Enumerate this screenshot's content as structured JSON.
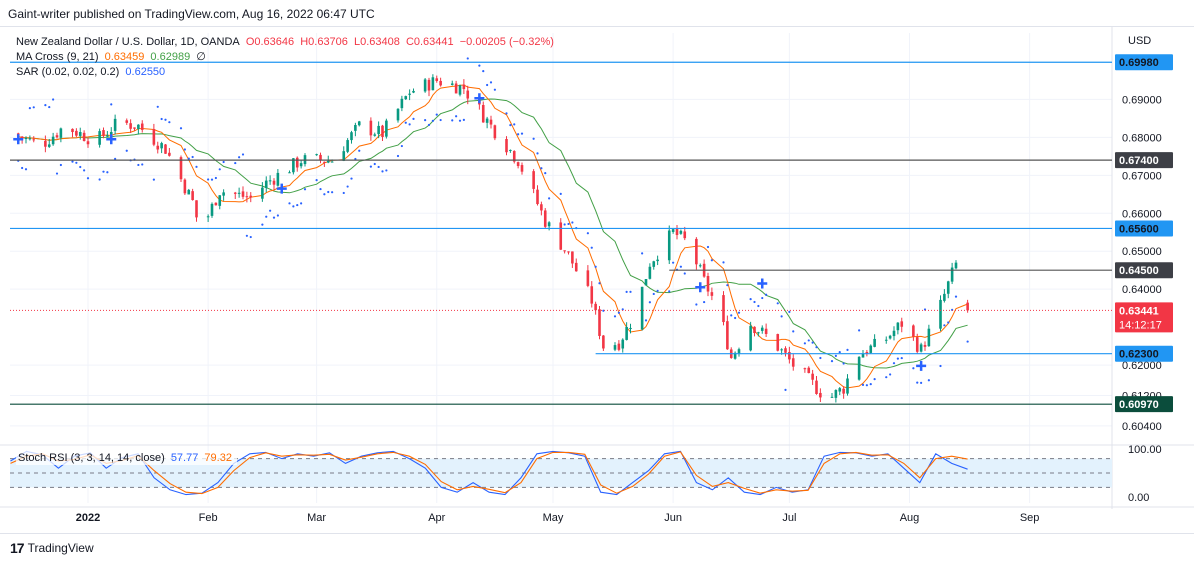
{
  "publisher": "Gaint-writer published on TradingView.com, Aug 16, 2022 06:47 UTC",
  "legend": {
    "symbol": "New Zealand Dollar / U.S. Dollar, 1D, OANDA",
    "open": "O0.63646",
    "high": "H0.63706",
    "low": "L0.63408",
    "close": "C0.63441",
    "change": "−0.00205 (−0.32%)",
    "ma_label": "MA Cross (9, 21)",
    "ma_fast": "0.63459",
    "ma_slow": "0.62989",
    "ma_extra": "∅",
    "sar_label": "SAR (0.02, 0.02, 0.2)",
    "sar_value": "0.62550",
    "stoch_label": "Stoch RSI (3, 3, 14, 14, close)",
    "stoch_k": "57.77",
    "stoch_d": "79.32"
  },
  "currency": "USD",
  "footer": {
    "logo": "17",
    "brand": "TradingView"
  },
  "colors": {
    "up": "#089981",
    "down": "#f23645",
    "ma_fast": "#ff6d00",
    "ma_slow": "#43a047",
    "sar": "#2962ff",
    "level_blue": "#2196f3",
    "level_dark": "#131722",
    "level_green": "#0b4d3c",
    "stoch_k": "#2962ff",
    "stoch_d": "#ff6d00",
    "stoch_band": "#e3f2fd"
  },
  "chart_data": [
    {
      "type": "candlestick",
      "ylim": [
        0.6,
        0.7075
      ],
      "y_ticks": [
        "0.69000",
        "0.68000",
        "0.67000",
        "0.66000",
        "0.65000",
        "0.64000",
        "0.62000",
        "0.61200",
        "0.60400"
      ],
      "x_ticks": [
        {
          "label": "2022",
          "bold": true,
          "day": 0
        },
        {
          "label": "Feb",
          "day": 31
        },
        {
          "label": "Mar",
          "day": 59
        },
        {
          "label": "Apr",
          "day": 90
        },
        {
          "label": "May",
          "day": 120
        },
        {
          "label": "Jun",
          "day": 151
        },
        {
          "label": "Jul",
          "day": 181
        },
        {
          "label": "Aug",
          "day": 212
        },
        {
          "label": "Sep",
          "day": 243
        }
      ],
      "levels": [
        {
          "value": 0.6998,
          "label": "0.69980",
          "style": "blue"
        },
        {
          "value": 0.674,
          "label": "0.67400",
          "style": "dark"
        },
        {
          "value": 0.656,
          "label": "0.65600",
          "style": "blue"
        },
        {
          "value": 0.645,
          "label": "0.64500",
          "style": "dark",
          "from_day": 150
        },
        {
          "value": 0.623,
          "label": "0.62300",
          "style": "blue",
          "from_day": 131
        },
        {
          "value": 0.6097,
          "label": "0.60970",
          "style": "green"
        }
      ],
      "last_price": {
        "value": 0.63441,
        "label": "0.63441",
        "countdown": "14:12:17"
      },
      "anchors": [
        {
          "day": -20,
          "price": 0.681
        },
        {
          "day": -12,
          "price": 0.678
        },
        {
          "day": -6,
          "price": 0.683
        },
        {
          "day": 2,
          "price": 0.679
        },
        {
          "day": 8,
          "price": 0.684
        },
        {
          "day": 13,
          "price": 0.683
        },
        {
          "day": 20,
          "price": 0.677
        },
        {
          "day": 27,
          "price": 0.663
        },
        {
          "day": 29,
          "price": 0.655
        },
        {
          "day": 34,
          "price": 0.666
        },
        {
          "day": 42,
          "price": 0.664
        },
        {
          "day": 46,
          "price": 0.668
        },
        {
          "day": 55,
          "price": 0.674
        },
        {
          "day": 63,
          "price": 0.674
        },
        {
          "day": 70,
          "price": 0.683
        },
        {
          "day": 76,
          "price": 0.681
        },
        {
          "day": 83,
          "price": 0.692
        },
        {
          "day": 90,
          "price": 0.695
        },
        {
          "day": 97,
          "price": 0.693
        },
        {
          "day": 104,
          "price": 0.683
        },
        {
          "day": 111,
          "price": 0.674
        },
        {
          "day": 118,
          "price": 0.658
        },
        {
          "day": 124,
          "price": 0.649
        },
        {
          "day": 130,
          "price": 0.637
        },
        {
          "day": 133,
          "price": 0.625
        },
        {
          "day": 137,
          "price": 0.626
        },
        {
          "day": 141,
          "price": 0.633
        },
        {
          "day": 145,
          "price": 0.647
        },
        {
          "day": 151,
          "price": 0.655
        },
        {
          "day": 155,
          "price": 0.652
        },
        {
          "day": 159,
          "price": 0.642
        },
        {
          "day": 163,
          "price": 0.634
        },
        {
          "day": 166,
          "price": 0.622
        },
        {
          "day": 171,
          "price": 0.631
        },
        {
          "day": 177,
          "price": 0.626
        },
        {
          "day": 182,
          "price": 0.62
        },
        {
          "day": 188,
          "price": 0.614
        },
        {
          "day": 191,
          "price": 0.611
        },
        {
          "day": 195,
          "price": 0.614
        },
        {
          "day": 199,
          "price": 0.623
        },
        {
          "day": 205,
          "price": 0.626
        },
        {
          "day": 210,
          "price": 0.631
        },
        {
          "day": 215,
          "price": 0.624
        },
        {
          "day": 219,
          "price": 0.633
        },
        {
          "day": 223,
          "price": 0.644
        },
        {
          "day": 224,
          "price": 0.6465
        },
        {
          "day": 226,
          "price": 0.636
        },
        {
          "day": 227,
          "price": 0.6344
        }
      ],
      "cross_markers": [
        {
          "day": -18,
          "price": 0.6795
        },
        {
          "day": 6,
          "price": 0.6795
        },
        {
          "day": 50,
          "price": 0.6665
        },
        {
          "day": 101,
          "price": 0.6903
        },
        {
          "day": 158,
          "price": 0.6405
        },
        {
          "day": 174,
          "price": 0.6415
        },
        {
          "day": 215,
          "price": 0.6198
        }
      ]
    },
    {
      "type": "line",
      "title": "Stoch RSI",
      "ylim": [
        0,
        100
      ],
      "y_ticks": [
        "100.00",
        "0.00"
      ],
      "band": [
        20,
        80
      ],
      "series": [
        {
          "name": "K",
          "values": [
            75,
            95,
            88,
            60,
            85,
            92,
            60,
            82,
            90,
            40,
            15,
            5,
            8,
            30,
            70,
            90,
            93,
            80,
            90,
            85,
            92,
            70,
            85,
            92,
            95,
            80,
            60,
            20,
            10,
            30,
            10,
            5,
            40,
            90,
            95,
            92,
            85,
            10,
            5,
            30,
            55,
            90,
            95,
            30,
            15,
            40,
            10,
            5,
            20,
            10,
            15,
            85,
            93,
            92,
            85,
            90,
            60,
            30,
            90,
            70,
            58
          ]
        },
        {
          "name": "D",
          "values": [
            70,
            85,
            90,
            75,
            78,
            88,
            70,
            76,
            86,
            55,
            28,
            10,
            7,
            20,
            55,
            82,
            92,
            85,
            88,
            87,
            89,
            77,
            83,
            90,
            93,
            85,
            68,
            32,
            15,
            22,
            16,
            9,
            30,
            80,
            93,
            93,
            89,
            25,
            8,
            22,
            48,
            85,
            94,
            45,
            22,
            30,
            18,
            8,
            15,
            12,
            14,
            70,
            90,
            93,
            87,
            88,
            70,
            40,
            80,
            85,
            79
          ]
        }
      ]
    }
  ]
}
